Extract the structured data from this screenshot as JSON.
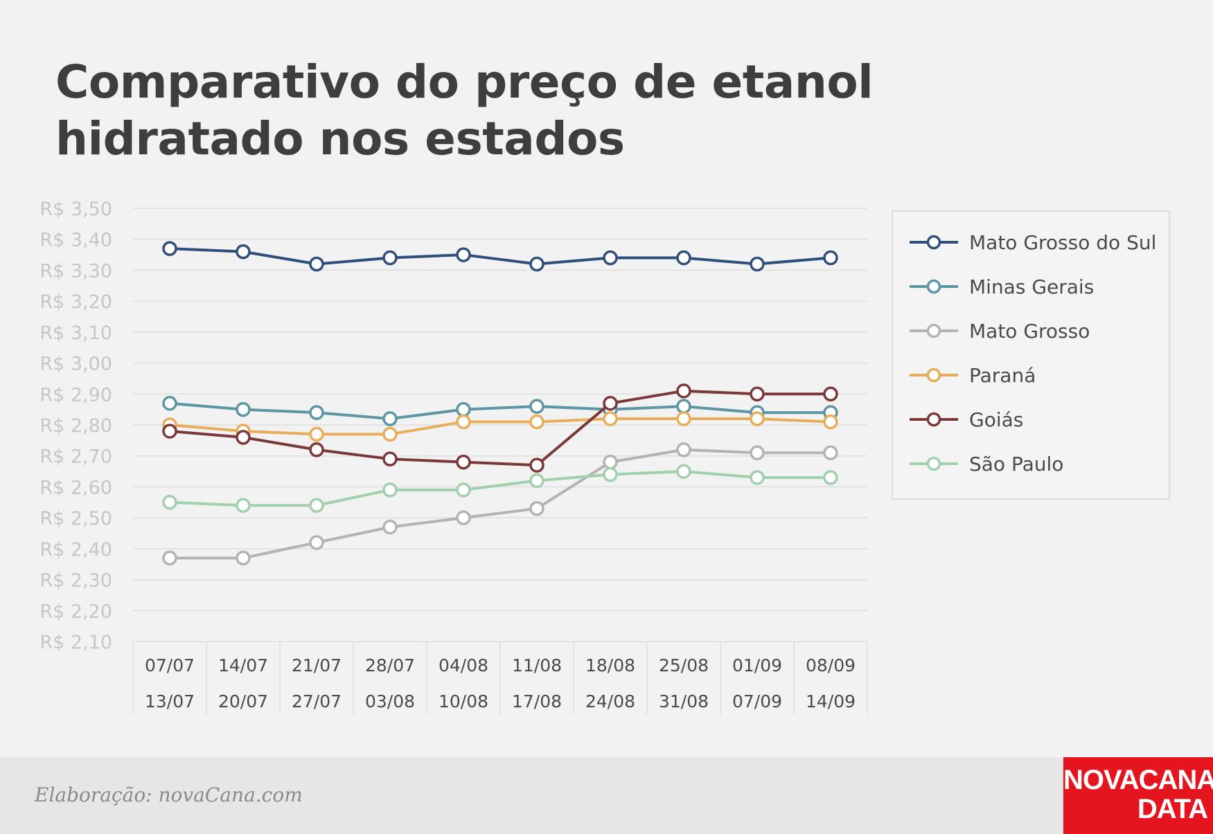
{
  "title": "Comparativo do preço de etanol hidratado nos estados",
  "footer": {
    "credit": "Elaboração: novaCana.com",
    "logo_line1": "NOVACANA",
    "logo_line2": "DATA",
    "logo_color": "#e4151f"
  },
  "chart_data": {
    "type": "line",
    "title": "Comparativo do preço de etanol hidratado nos estados",
    "x": [
      "07/07 13/07",
      "14/07 20/07",
      "21/07 27/07",
      "28/07 03/08",
      "04/08 10/08",
      "11/08 17/08",
      "18/08 24/08",
      "25/08 31/08",
      "01/09 07/09",
      "08/09 14/09"
    ],
    "x_tick_labels": [
      [
        "07/07",
        "13/07"
      ],
      [
        "14/07",
        "20/07"
      ],
      [
        "21/07",
        "27/07"
      ],
      [
        "28/07",
        "03/08"
      ],
      [
        "04/08",
        "10/08"
      ],
      [
        "11/08",
        "17/08"
      ],
      [
        "18/08",
        "24/08"
      ],
      [
        "25/08",
        "31/08"
      ],
      [
        "01/09",
        "07/09"
      ],
      [
        "08/09",
        "14/09"
      ]
    ],
    "y_tick_labels": [
      "R$ 3,50",
      "R$ 3,40",
      "R$ 3,30",
      "R$ 3,20",
      "R$ 3,10",
      "R$ 3,00",
      "R$ 2,90",
      "R$ 2,80",
      "R$ 2,70",
      "R$ 2,60",
      "R$ 2,50",
      "R$ 2,40",
      "R$ 2,30",
      "R$ 2,20",
      "R$ 2,10"
    ],
    "ylim": [
      2.1,
      3.5
    ],
    "grid": true,
    "legend_position": "right",
    "series": [
      {
        "name": "Mato Grosso do Sul",
        "color": "#2f4f7a",
        "values": [
          3.37,
          3.36,
          3.32,
          3.34,
          3.35,
          3.32,
          3.34,
          3.34,
          3.32,
          3.34
        ]
      },
      {
        "name": "Minas Gerais",
        "color": "#5c96a3",
        "values": [
          2.87,
          2.85,
          2.84,
          2.82,
          2.85,
          2.86,
          2.85,
          2.86,
          2.84,
          2.84
        ]
      },
      {
        "name": "Mato Grosso",
        "color": "#b3b3b3",
        "values": [
          2.37,
          2.37,
          2.42,
          2.47,
          2.5,
          2.53,
          2.68,
          2.72,
          2.71,
          2.71
        ]
      },
      {
        "name": "Paraná",
        "color": "#e8ad5b",
        "values": [
          2.8,
          2.78,
          2.77,
          2.77,
          2.81,
          2.81,
          2.82,
          2.82,
          2.82,
          2.81
        ]
      },
      {
        "name": "Goiás",
        "color": "#7b3838",
        "values": [
          2.78,
          2.76,
          2.72,
          2.69,
          2.68,
          2.67,
          2.87,
          2.91,
          2.9,
          2.9
        ]
      },
      {
        "name": "São Paulo",
        "color": "#a2cfac",
        "values": [
          2.55,
          2.54,
          2.54,
          2.59,
          2.59,
          2.62,
          2.64,
          2.65,
          2.63,
          2.63
        ]
      }
    ]
  }
}
